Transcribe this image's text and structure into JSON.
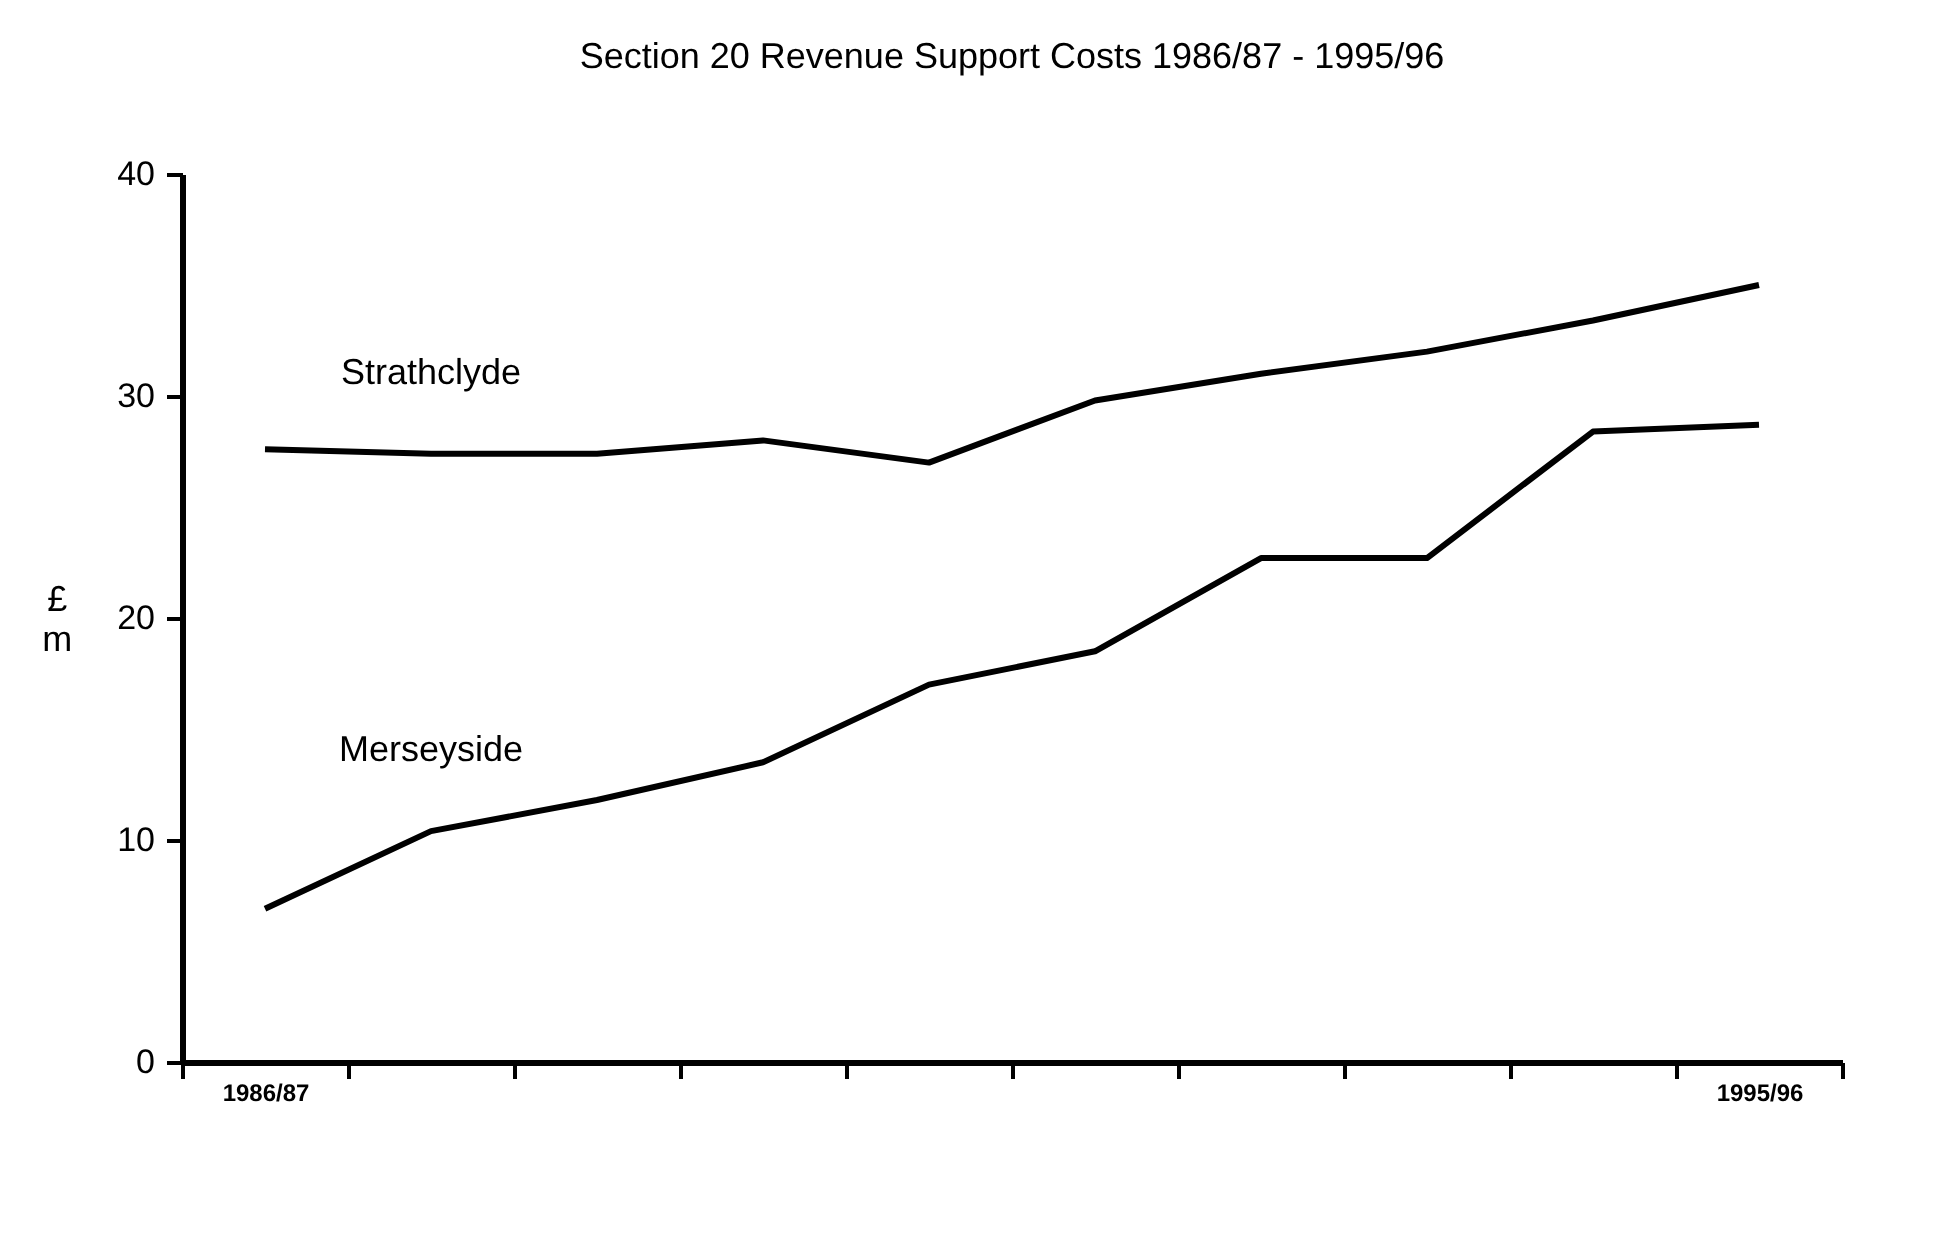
{
  "chart_data": {
    "type": "line",
    "title": "Section 20 Revenue Support Costs 1986/87 - 1995/96",
    "ylabel": "£m",
    "categories": [
      "1986/87",
      null,
      null,
      null,
      null,
      null,
      null,
      null,
      null,
      "1995/96"
    ],
    "series": [
      {
        "name": "Strathclyde",
        "color": "#000000",
        "values": [
          27.6,
          27.4,
          27.4,
          28.0,
          27.0,
          29.8,
          31.0,
          32.0,
          33.4,
          35.0
        ]
      },
      {
        "name": "Merseyside",
        "color": "#000000",
        "values": [
          6.9,
          10.4,
          11.8,
          13.5,
          17.0,
          18.5,
          22.7,
          22.7,
          28.4,
          28.7
        ]
      }
    ],
    "ylim": [
      0,
      40
    ],
    "yticks": [
      0,
      10,
      20,
      30,
      40
    ],
    "grid": false,
    "legend": false,
    "marker": "none",
    "line_style": "solid"
  }
}
